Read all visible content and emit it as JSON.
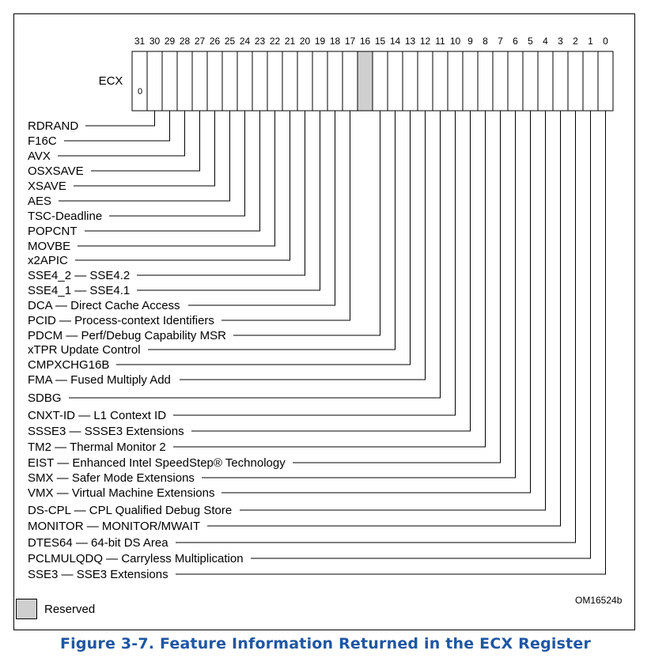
{
  "register": {
    "name": "ECX",
    "bit_numbers": [
      "31",
      "30",
      "29",
      "28",
      "27",
      "26",
      "25",
      "24",
      "23",
      "22",
      "21",
      "20",
      "19",
      "18",
      "17",
      "16",
      "15",
      "14",
      "13",
      "12",
      "11",
      "10",
      "9",
      "8",
      "7",
      "6",
      "5",
      "4",
      "3",
      "2",
      "1",
      "0"
    ],
    "bit31_value": "0",
    "reserved_bits": [
      16
    ]
  },
  "features": [
    {
      "bit": 30,
      "parts": [
        "RDRAND"
      ]
    },
    {
      "bit": 29,
      "parts": [
        "F16C"
      ]
    },
    {
      "bit": 28,
      "parts": [
        "AVX"
      ]
    },
    {
      "bit": 27,
      "parts": [
        "OSXSAVE"
      ]
    },
    {
      "bit": 26,
      "parts": [
        "XSAVE"
      ]
    },
    {
      "bit": 25,
      "parts": [
        "AES"
      ]
    },
    {
      "bit": 24,
      "parts": [
        "TSC-Deadline"
      ]
    },
    {
      "bit": 23,
      "parts": [
        "POPCNT"
      ]
    },
    {
      "bit": 22,
      "parts": [
        "MOVBE"
      ]
    },
    {
      "bit": 21,
      "parts": [
        "x2APIC"
      ]
    },
    {
      "bit": 20,
      "parts": [
        "SSE4_2",
        "SSE4.2"
      ]
    },
    {
      "bit": 19,
      "parts": [
        "SSE4_1",
        "SSE4.1"
      ]
    },
    {
      "bit": 18,
      "parts": [
        "DCA",
        "Direct Cache Access"
      ]
    },
    {
      "bit": 17,
      "parts": [
        "PCID",
        "Process-context Identifiers"
      ]
    },
    {
      "bit": 15,
      "parts": [
        "PDCM",
        "Perf/Debug Capability MSR"
      ]
    },
    {
      "bit": 14,
      "parts": [
        "xTPR Update Control"
      ]
    },
    {
      "bit": 13,
      "parts": [
        "CMPXCHG16B"
      ]
    },
    {
      "bit": 12,
      "parts": [
        "FMA",
        "Fused Multiply Add"
      ]
    },
    {
      "bit": 11,
      "parts": [
        "SDBG"
      ]
    },
    {
      "bit": 10,
      "parts": [
        "CNXT-ID",
        "L1 Context ID"
      ]
    },
    {
      "bit": 9,
      "parts": [
        "SSSE3",
        "SSSE3 Extensions"
      ]
    },
    {
      "bit": 8,
      "parts": [
        "TM2",
        "Thermal Monitor 2"
      ]
    },
    {
      "bit": 7,
      "parts": [
        "EIST",
        "Enhanced Intel SpeedStep® Technology"
      ]
    },
    {
      "bit": 6,
      "parts": [
        "SMX",
        "Safer Mode Extensions"
      ]
    },
    {
      "bit": 5,
      "parts": [
        "VMX",
        "Virtual Machine Extensions"
      ]
    },
    {
      "bit": 4,
      "parts": [
        "DS-CPL",
        "CPL Qualified Debug Store"
      ]
    },
    {
      "bit": 3,
      "parts": [
        "MONITOR",
        "MONITOR/MWAIT"
      ]
    },
    {
      "bit": 2,
      "parts": [
        "DTES64",
        "64-bit DS Area"
      ]
    },
    {
      "bit": 1,
      "parts": [
        "PCLMULQDQ",
        "Carryless Multiplication"
      ]
    },
    {
      "bit": 0,
      "parts": [
        "SSE3",
        "SSE3 Extensions"
      ]
    }
  ],
  "separator": "—",
  "legend": {
    "label": "Reserved",
    "color": "#cfcfcf"
  },
  "figure_id": "OM16524b",
  "caption": "Figure 3-7.  Feature Information Returned in the ECX Register",
  "caption_color": "#1f56a3"
}
